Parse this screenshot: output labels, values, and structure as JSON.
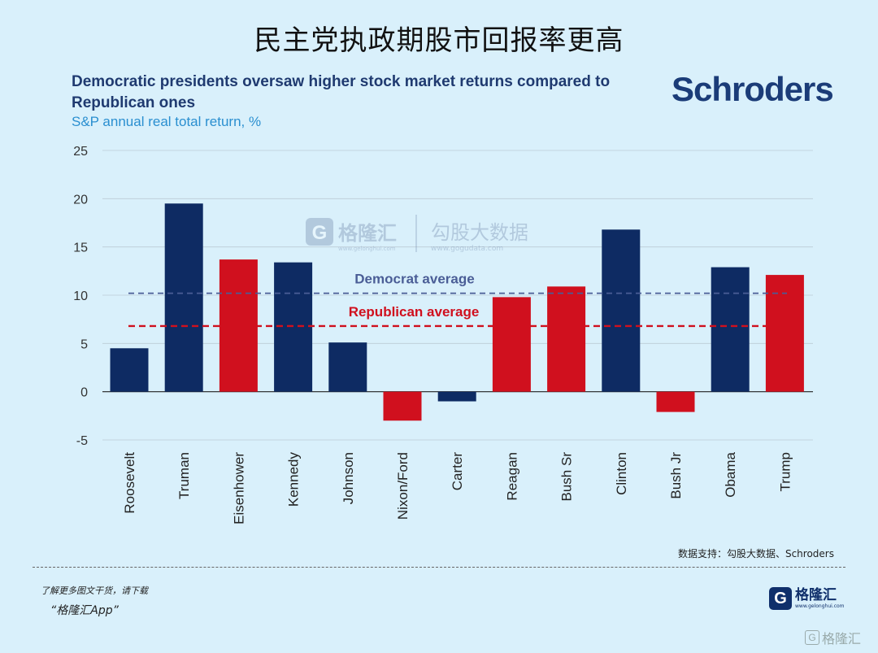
{
  "page_title": "民主党执政期股市回报率更高",
  "brand": "Schroders",
  "source_note": "数据支持：勾股大数据、Schroders",
  "footer": {
    "tip": "了解更多图文干货，请下载",
    "app": "“格隆汇App”",
    "logo_letter": "G",
    "logo_text": "格隆汇",
    "logo_url": "www.gelonghui.com"
  },
  "watermark": {
    "logo_text": "格隆汇",
    "logo_url": "www.gelonghui.com",
    "partner_text": "勾股大数据",
    "partner_url": "www.gogudata.com"
  },
  "corner_mark": {
    "letter": "G",
    "text": "格隆汇"
  },
  "colors": {
    "democrat": "#0e2b63",
    "republican": "#d0101e",
    "democrat_line": "#4a5d96",
    "republican_line": "#d0101e",
    "grid": "#bccbd6",
    "axis_text": "#333333"
  },
  "chart_data": {
    "type": "bar",
    "title": "Democratic presidents oversaw higher stock market returns compared to Republican ones",
    "subtitle": "S&P annual real total return, %",
    "categories": [
      "Roosevelt",
      "Truman",
      "Eisenhower",
      "Kennedy",
      "Johnson",
      "Nixon/Ford",
      "Carter",
      "Reagan",
      "Bush Sr",
      "Clinton",
      "Bush Jr",
      "Obama",
      "Trump"
    ],
    "values": [
      4.5,
      19.5,
      13.7,
      13.4,
      5.1,
      -3.0,
      -1.0,
      9.8,
      10.9,
      16.8,
      -2.1,
      12.9,
      12.1
    ],
    "party": [
      "D",
      "D",
      "R",
      "D",
      "D",
      "R",
      "D",
      "R",
      "R",
      "D",
      "R",
      "D",
      "R"
    ],
    "ylim": [
      -5,
      25
    ],
    "yticks": [
      -5,
      0,
      5,
      10,
      15,
      20,
      25
    ],
    "ytick_labels": [
      "-5",
      "0",
      "5",
      "10",
      "15",
      "20",
      "25"
    ],
    "grid": true,
    "reference_lines": [
      {
        "label": "Democrat average",
        "value": 10.2,
        "party": "D"
      },
      {
        "label": "Republican average",
        "value": 6.8,
        "party": "R"
      }
    ]
  }
}
